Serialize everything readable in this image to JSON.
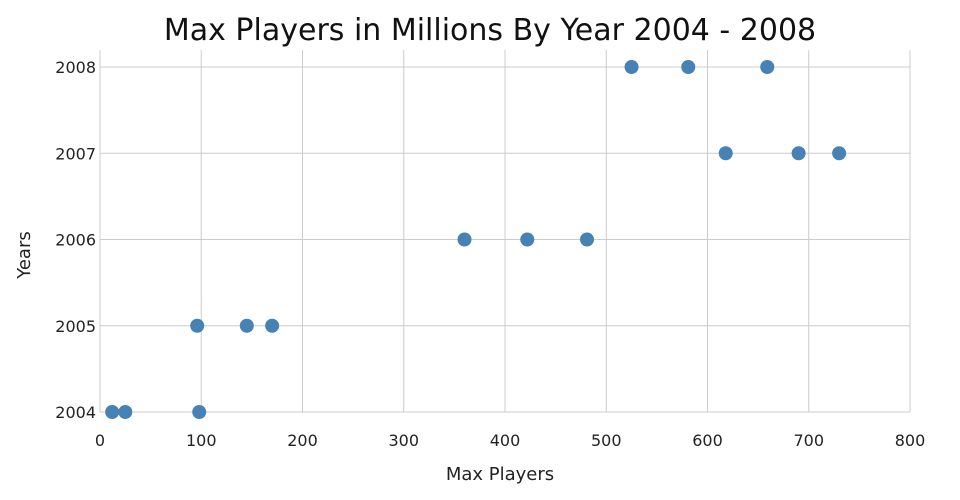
{
  "chart_data": {
    "type": "scatter",
    "title": "Max Players in Millions By Year 2004 - 2008",
    "xlabel": "Max Players",
    "ylabel": "Years",
    "xlim": [
      0,
      800
    ],
    "ylim": [
      2004,
      2008
    ],
    "x_ticks": [
      0,
      100,
      200,
      300,
      400,
      500,
      600,
      700,
      800
    ],
    "y_ticks": [
      2004,
      2005,
      2006,
      2007,
      2008
    ],
    "grid": true,
    "point_color": "#4682b4",
    "series": [
      {
        "points": [
          {
            "x": 12,
            "y": 2004
          },
          {
            "x": 25,
            "y": 2004
          },
          {
            "x": 98,
            "y": 2004
          },
          {
            "x": 96,
            "y": 2005
          },
          {
            "x": 145,
            "y": 2005
          },
          {
            "x": 170,
            "y": 2005
          },
          {
            "x": 360,
            "y": 2006
          },
          {
            "x": 422,
            "y": 2006
          },
          {
            "x": 481,
            "y": 2006
          },
          {
            "x": 618,
            "y": 2007
          },
          {
            "x": 690,
            "y": 2007
          },
          {
            "x": 730,
            "y": 2007
          },
          {
            "x": 525,
            "y": 2008
          },
          {
            "x": 581,
            "y": 2008
          },
          {
            "x": 659,
            "y": 2008
          }
        ]
      }
    ]
  }
}
